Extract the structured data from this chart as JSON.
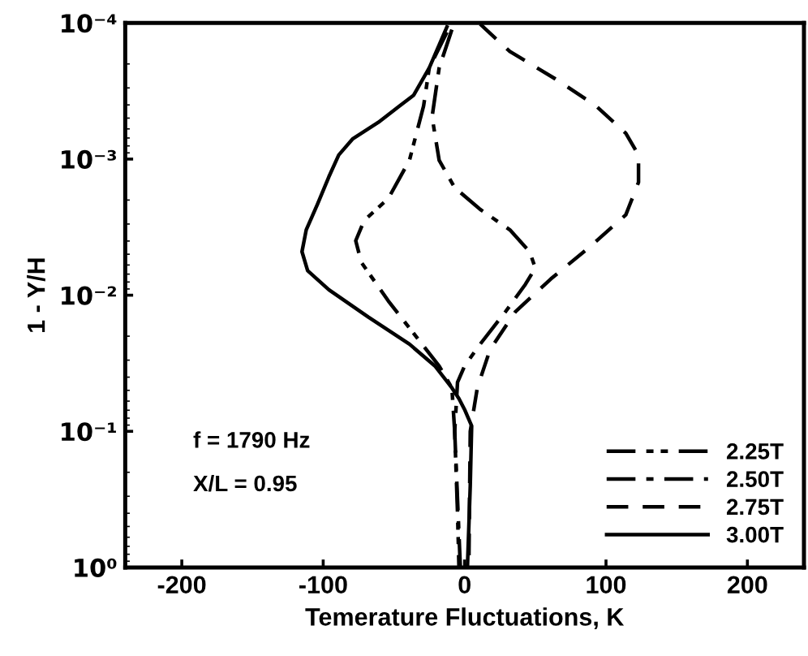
{
  "chart_data": {
    "type": "line",
    "xlabel": "Temerature Fluctuations, K",
    "ylabel": "1 - Y/H",
    "xlim": [
      -240,
      240
    ],
    "xticks": [
      -200,
      -100,
      0,
      100,
      200
    ],
    "ylim": [
      1,
      0.0001
    ],
    "log": "y",
    "yticks": [
      {
        "value": 0.0001,
        "label": "10⁻⁴"
      },
      {
        "value": 0.001,
        "label": "10⁻³"
      },
      {
        "value": 0.01,
        "label": "10⁻²"
      },
      {
        "value": 0.1,
        "label": "10⁻¹"
      },
      {
        "value": 1,
        "label": "10⁰"
      }
    ],
    "grid": false,
    "legend": "bottom right",
    "marker": "none",
    "annotations": [
      "f = 1790 Hz",
      "X/L = 0.95"
    ],
    "series": [
      {
        "name": "2.25T",
        "color": "#000000",
        "line_style": "dashdotdot",
        "x": [
          -12.5,
          -25,
          -29,
          -39,
          -54,
          -71,
          -77,
          -73,
          -54,
          -36,
          -18,
          -9,
          -7,
          -5,
          -4
        ],
        "values": [
          0.000117,
          0.000214,
          0.000407,
          0.00102,
          0.00195,
          0.00282,
          0.00398,
          0.00575,
          0.011,
          0.0191,
          0.0331,
          0.0479,
          0.1,
          0.398,
          1
        ]
      },
      {
        "name": "2.50T",
        "color": "#000000",
        "line_style": "dashdot",
        "x": [
          -9,
          -18,
          -23,
          -18,
          -7,
          11,
          32,
          46,
          50,
          43,
          29,
          11,
          0,
          -5,
          -7,
          -3
        ],
        "values": [
          0.000112,
          0.000214,
          0.00049,
          0.00102,
          0.00162,
          0.00234,
          0.00331,
          0.00479,
          0.00631,
          0.00832,
          0.0132,
          0.0229,
          0.0331,
          0.0437,
          0.1,
          1
        ]
      },
      {
        "name": "2.75T",
        "color": "#000000",
        "line_style": "dashed",
        "x": [
          11,
          32,
          64,
          93,
          114,
          123,
          123,
          114,
          89,
          61,
          36,
          18,
          9,
          4,
          3
        ],
        "values": [
          0.000102,
          0.000162,
          0.000257,
          0.000407,
          0.000646,
          0.000933,
          0.00148,
          0.00257,
          0.00437,
          0.00759,
          0.0132,
          0.0251,
          0.0479,
          0.1,
          1
        ]
      },
      {
        "name": "3.00T",
        "color": "#000000",
        "line_style": "solid",
        "x": [
          -12.5,
          -25,
          -36,
          -46,
          -61,
          -79,
          -89,
          -96,
          -104,
          -112,
          -115,
          -111,
          -96,
          -68,
          -39,
          -21,
          -9,
          -4,
          0,
          5,
          4,
          2
        ],
        "values": [
          0.000107,
          0.000214,
          0.000339,
          0.000407,
          0.000537,
          0.000708,
          0.000933,
          0.00135,
          0.00214,
          0.00331,
          0.00479,
          0.00661,
          0.00912,
          0.0145,
          0.0229,
          0.0331,
          0.0479,
          0.0575,
          0.0692,
          0.0912,
          0.251,
          1
        ]
      }
    ]
  }
}
